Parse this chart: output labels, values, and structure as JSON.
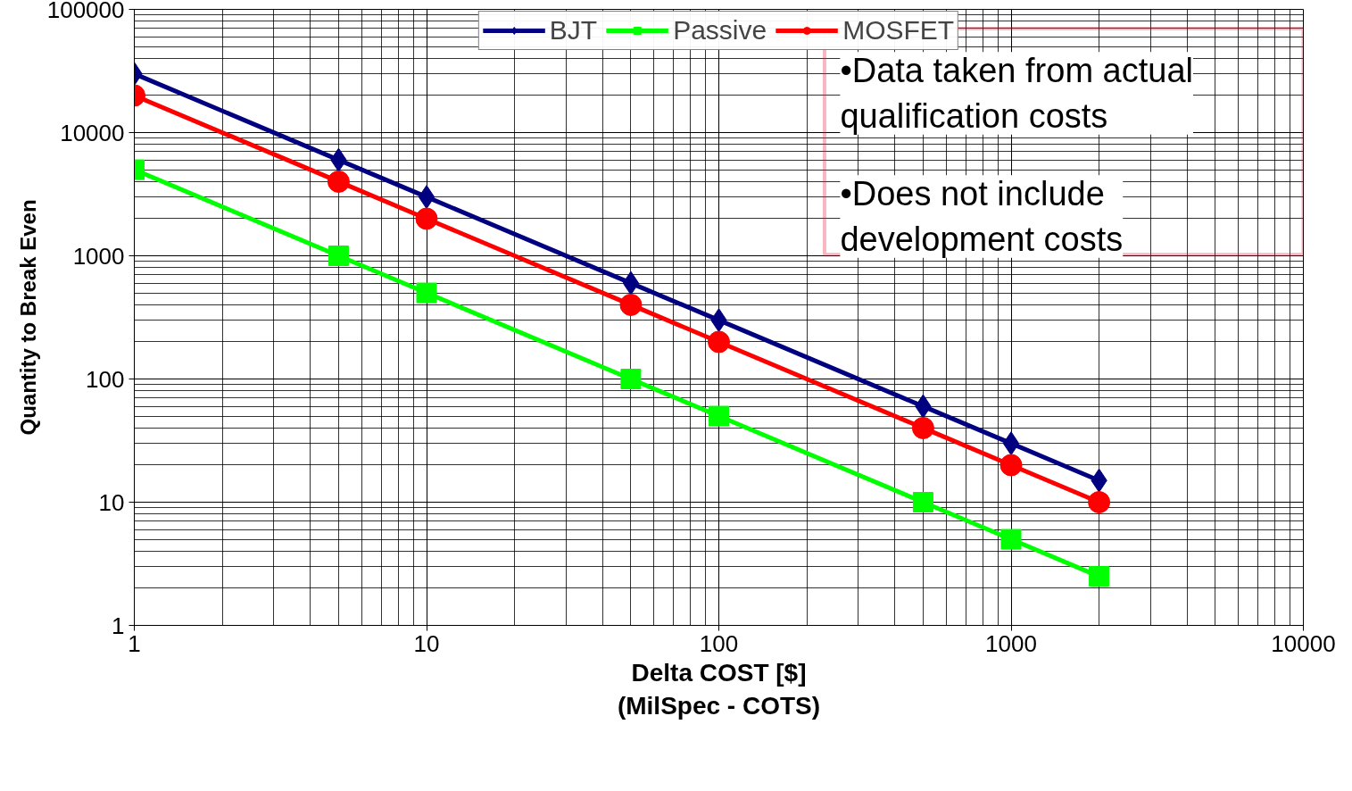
{
  "chart_data": {
    "type": "line",
    "xlabel": "Delta COST [$]\n(MilSpec - COTS)",
    "ylabel": "Quantity to Break Even",
    "log": "xy",
    "grid": true,
    "legend": "top",
    "line_style": "solid",
    "x": [
      1,
      5,
      10,
      50,
      100,
      500,
      1000,
      2000
    ],
    "series": [
      {
        "name": "BJT",
        "color": "#000080",
        "marker": "diamond",
        "values": [
          30000,
          6000,
          3000,
          600,
          300,
          60,
          30,
          15
        ]
      },
      {
        "name": "Passive",
        "color": "#00ff00",
        "marker": "square",
        "values": [
          5000,
          1000,
          500,
          100,
          50,
          10,
          5,
          2.5
        ]
      },
      {
        "name": "MOSFET",
        "color": "#ff0000",
        "marker": "circle",
        "values": [
          20000,
          4000,
          2000,
          400,
          200,
          40,
          20,
          10
        ]
      }
    ],
    "xlim": [
      1,
      10000
    ],
    "ylim": [
      1,
      100000
    ],
    "xticks": [
      1,
      10,
      100,
      1000,
      10000
    ],
    "yticks": [
      1,
      10,
      100,
      1000,
      10000,
      100000
    ],
    "annotations": [
      "•Data taken from actual qualification costs",
      "•Does not include development costs"
    ]
  }
}
